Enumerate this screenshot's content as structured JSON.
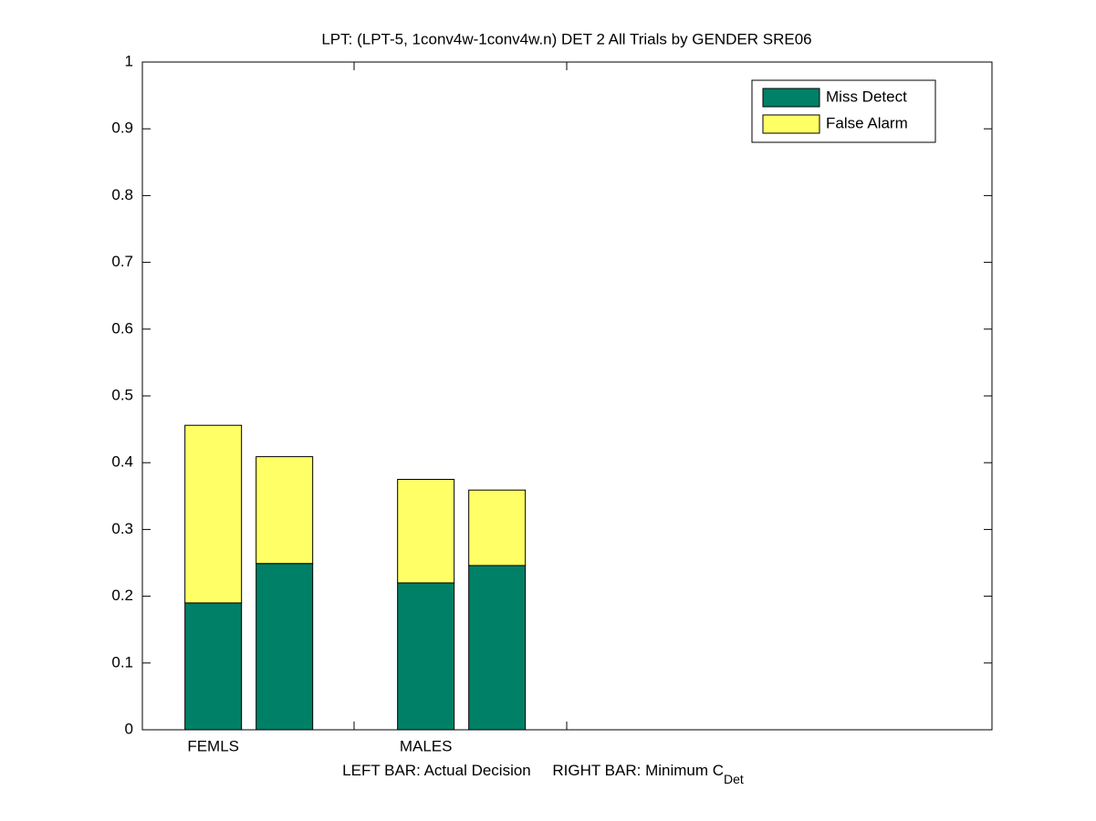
{
  "chart_data": {
    "type": "stacked-bar",
    "title": "LPT: (LPT-5, 1conv4w-1conv4w.n) DET 2 All Trials by GENDER SRE06",
    "xlabel": {
      "text": "LEFT BAR: Actual Decision     RIGHT BAR: Minimum C",
      "subscript": "Det"
    },
    "categories": [
      "FEMLS",
      null,
      "MALES",
      null
    ],
    "series": [
      {
        "name": "Miss Detect",
        "color": "#008066",
        "values": [
          0.19,
          0.249,
          0.22,
          0.246
        ]
      },
      {
        "name": "False Alarm",
        "color": "#ffff66",
        "values": [
          0.266,
          0.16,
          0.155,
          0.113
        ]
      }
    ],
    "ylim": [
      0,
      1
    ],
    "yticks": [
      0,
      0.1,
      0.2,
      0.3,
      0.4,
      0.5,
      0.6,
      0.7,
      0.8,
      0.9,
      1
    ],
    "legend": "upper-right"
  }
}
